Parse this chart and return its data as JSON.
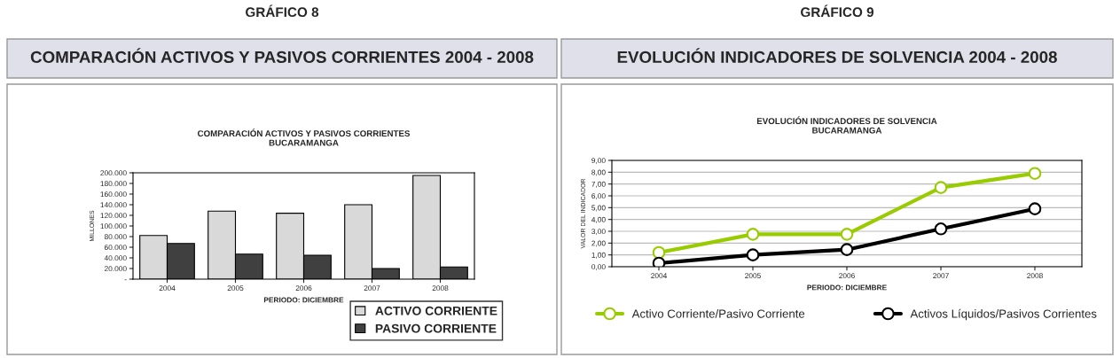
{
  "chart_data": [
    {
      "type": "bar",
      "annotations": [
        "GRÁFICO 8"
      ],
      "title": "COMPARACIÓN ACTIVOS Y PASIVOS CORRIENTES 2004 - 2008",
      "subtitle": "COMPARACIÓN ACTIVOS Y PASIVOS CORRIENTES\nBUCARAMANGA",
      "xlabel": "PERIODO: DICIEMBRE",
      "ylabel": "MILLONES",
      "categories": [
        "2004",
        "2005",
        "2006",
        "2007",
        "2008"
      ],
      "series": [
        {
          "name": "ACTIVO CORRIENTE",
          "color": "#d9d9d9",
          "values": [
            82000,
            128000,
            124000,
            140000,
            195000
          ]
        },
        {
          "name": "PASIVO CORRIENTE",
          "color": "#404040",
          "values": [
            67000,
            47000,
            45000,
            20000,
            23000
          ]
        }
      ],
      "ylim": [
        0,
        200000
      ],
      "yticks": [
        {
          "value": 0,
          "label": "-"
        },
        {
          "value": 20000,
          "label": "20.000"
        },
        {
          "value": 40000,
          "label": "40.000"
        },
        {
          "value": 60000,
          "label": "60.000"
        },
        {
          "value": 80000,
          "label": "80.000"
        },
        {
          "value": 100000,
          "label": "100.000"
        },
        {
          "value": 120000,
          "label": "120.000"
        },
        {
          "value": 140000,
          "label": "140.000"
        },
        {
          "value": 160000,
          "label": "160.000"
        },
        {
          "value": 180000,
          "label": "180.000"
        },
        {
          "value": 200000,
          "label": "200.000"
        }
      ],
      "legend": "bottom right"
    },
    {
      "type": "line",
      "annotations": [
        "GRÁFICO 9"
      ],
      "title": "EVOLUCIÓN INDICADORES DE SOLVENCIA 2004 - 2008",
      "subtitle": "EVOLUCIÓN INDICADORES DE SOLVENCIA\nBUCARAMANGA",
      "xlabel": "PERIODO: DICIEMBRE",
      "ylabel": "VALOR DEL INDICADOR",
      "categories": [
        "2004",
        "2005",
        "2006",
        "2007",
        "2008"
      ],
      "series": [
        {
          "name": "Activo Corriente/Pasivo Corriente",
          "color": "#99cc00",
          "values": [
            1.2,
            2.75,
            2.75,
            6.7,
            7.9
          ]
        },
        {
          "name": "Activos Líquidos/Pasivos Corrientes",
          "color": "#000000",
          "values": [
            0.3,
            1.0,
            1.45,
            3.2,
            4.9
          ]
        }
      ],
      "ylim": [
        0,
        9
      ],
      "yticks": [
        {
          "value": 0,
          "label": "0,00"
        },
        {
          "value": 1,
          "label": "1,00"
        },
        {
          "value": 2,
          "label": "2,00"
        },
        {
          "value": 3,
          "label": "3,00"
        },
        {
          "value": 4,
          "label": "4,00"
        },
        {
          "value": 5,
          "label": "5,00"
        },
        {
          "value": 6,
          "label": "6,00"
        },
        {
          "value": 7,
          "label": "7,00"
        },
        {
          "value": 8,
          "label": "8,00"
        },
        {
          "value": 9,
          "label": "9,00"
        }
      ],
      "grid": "y",
      "marker": "circle",
      "line_style": "solid",
      "legend": "bottom"
    }
  ]
}
